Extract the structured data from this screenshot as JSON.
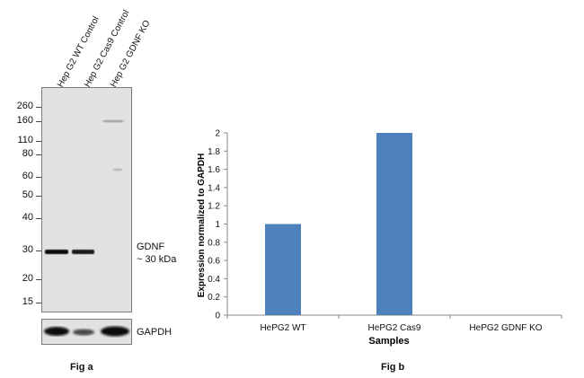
{
  "fig_a": {
    "lanes": [
      "Hep G2 WT Control",
      "Hep G2 Cas9 Control",
      "Hep G2 GDNF KO"
    ],
    "mw_markers": [
      "260",
      "160",
      "110",
      "80",
      "60",
      "50",
      "40",
      "30",
      "20",
      "15"
    ],
    "target_label_line1": "GDNF",
    "target_label_line2": "~ 30 kDa",
    "loading_control_label": "GAPDH",
    "caption": "Fig a"
  },
  "fig_b": {
    "caption": "Fig b"
  },
  "chart_data": {
    "type": "bar",
    "categories": [
      "HePG2 WT",
      "HePG2 Cas9",
      "HePG2 GDNF KO"
    ],
    "values": [
      1,
      2,
      0
    ],
    "xlabel": "Samples",
    "ylabel": "Expression  normalized to GAPDH",
    "ylim": [
      0,
      2
    ],
    "yticks": [
      "0",
      "0.2",
      "0.4",
      "0.6",
      "0.8",
      "1",
      "1.2",
      "1.4",
      "1.6",
      "1.8",
      "2"
    ],
    "bar_color": "#4f81bd",
    "grid": false,
    "legend": "none"
  }
}
